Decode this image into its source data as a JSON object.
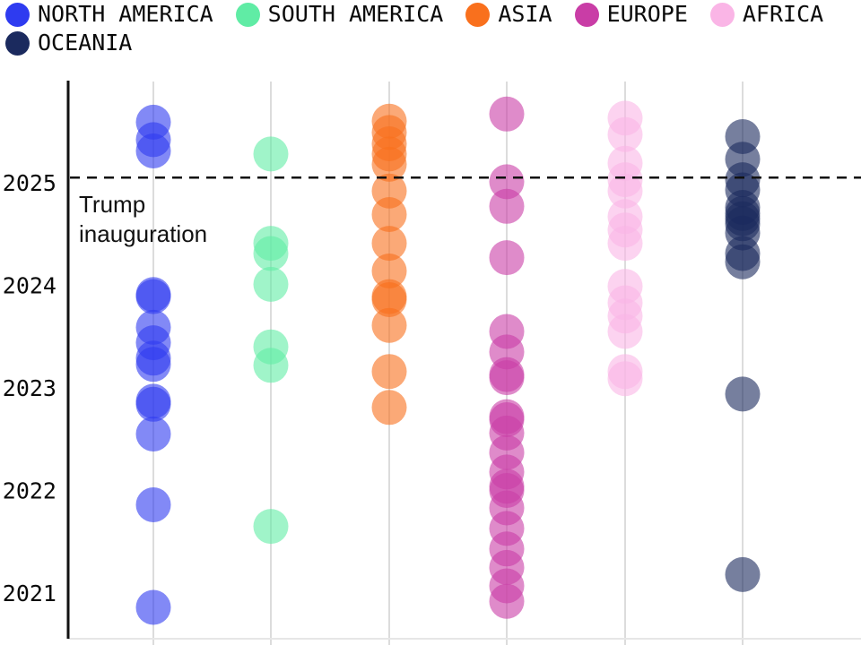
{
  "legend": {
    "items": [
      {
        "label": "NORTH AMERICA",
        "color": "#2e3bf0"
      },
      {
        "label": "SOUTH AMERICA",
        "color": "#60eca5"
      },
      {
        "label": "ASIA",
        "color": "#f9701d"
      },
      {
        "label": "EUROPE",
        "color": "#c93da6"
      },
      {
        "label": "AFRICA",
        "color": "#fab5e6"
      },
      {
        "label": "OCEANIA",
        "color": "#1b2a5e"
      }
    ]
  },
  "annotation": {
    "reference_line_label": "Trump inauguration"
  },
  "chart_data": {
    "type": "scatter",
    "title": "",
    "xlabel": "",
    "ylabel": "",
    "x_categories": [
      "NORTH AMERICA",
      "SOUTH AMERICA",
      "ASIA",
      "EUROPE",
      "AFRICA",
      "OCEANIA"
    ],
    "yticks": [
      2025,
      2024,
      2023,
      2022,
      2021
    ],
    "ylim": [
      2020.55,
      2025.95
    ],
    "grid": "vertical-category-lines",
    "legend_position": "top",
    "reference_line": {
      "year": 2025.05,
      "label": "Trump inauguration",
      "style": "dashed"
    },
    "marker": {
      "shape": "circle",
      "opacity": 0.6
    },
    "series": [
      {
        "name": "NORTH AMERICA",
        "color": "#2e3bf0",
        "years": [
          2025.59,
          2025.42,
          2025.31,
          2023.91,
          2023.89,
          2023.59,
          2023.44,
          2023.29,
          2023.23,
          2022.87,
          2022.84,
          2022.55,
          2021.86,
          2020.86
        ]
      },
      {
        "name": "SOUTH AMERICA",
        "color": "#60eca5",
        "years": [
          2025.28,
          2024.41,
          2024.31,
          2024.01,
          2023.4,
          2023.22,
          2021.65
        ]
      },
      {
        "name": "ASIA",
        "color": "#f9701d",
        "years": [
          2025.6,
          2025.49,
          2025.38,
          2025.28,
          2025.18,
          2024.92,
          2024.69,
          2024.41,
          2024.14,
          2023.89,
          2023.86,
          2023.61,
          2023.16,
          2022.81
        ]
      },
      {
        "name": "EUROPE",
        "color": "#c93da6",
        "years": [
          2025.67,
          2025.01,
          2024.77,
          2024.27,
          2023.55,
          2023.35,
          2023.13,
          2023.1,
          2022.72,
          2022.69,
          2022.56,
          2022.37,
          2022.18,
          2022.04,
          2022.0,
          2021.83,
          2021.63,
          2021.43,
          2021.25,
          2021.07,
          2020.92
        ]
      },
      {
        "name": "AFRICA",
        "color": "#fab5e6",
        "years": [
          2025.63,
          2025.47,
          2025.19,
          2025.03,
          2024.92,
          2024.67,
          2024.54,
          2024.41,
          2023.99,
          2023.83,
          2023.7,
          2023.55,
          2023.16,
          2023.09
        ]
      },
      {
        "name": "OCEANIA",
        "color": "#1b2a5e",
        "years": [
          2025.45,
          2025.23,
          2025.03,
          2024.93,
          2024.76,
          2024.7,
          2024.65,
          2024.6,
          2024.51,
          2024.31,
          2024.23,
          2022.94,
          2021.18
        ]
      }
    ]
  }
}
